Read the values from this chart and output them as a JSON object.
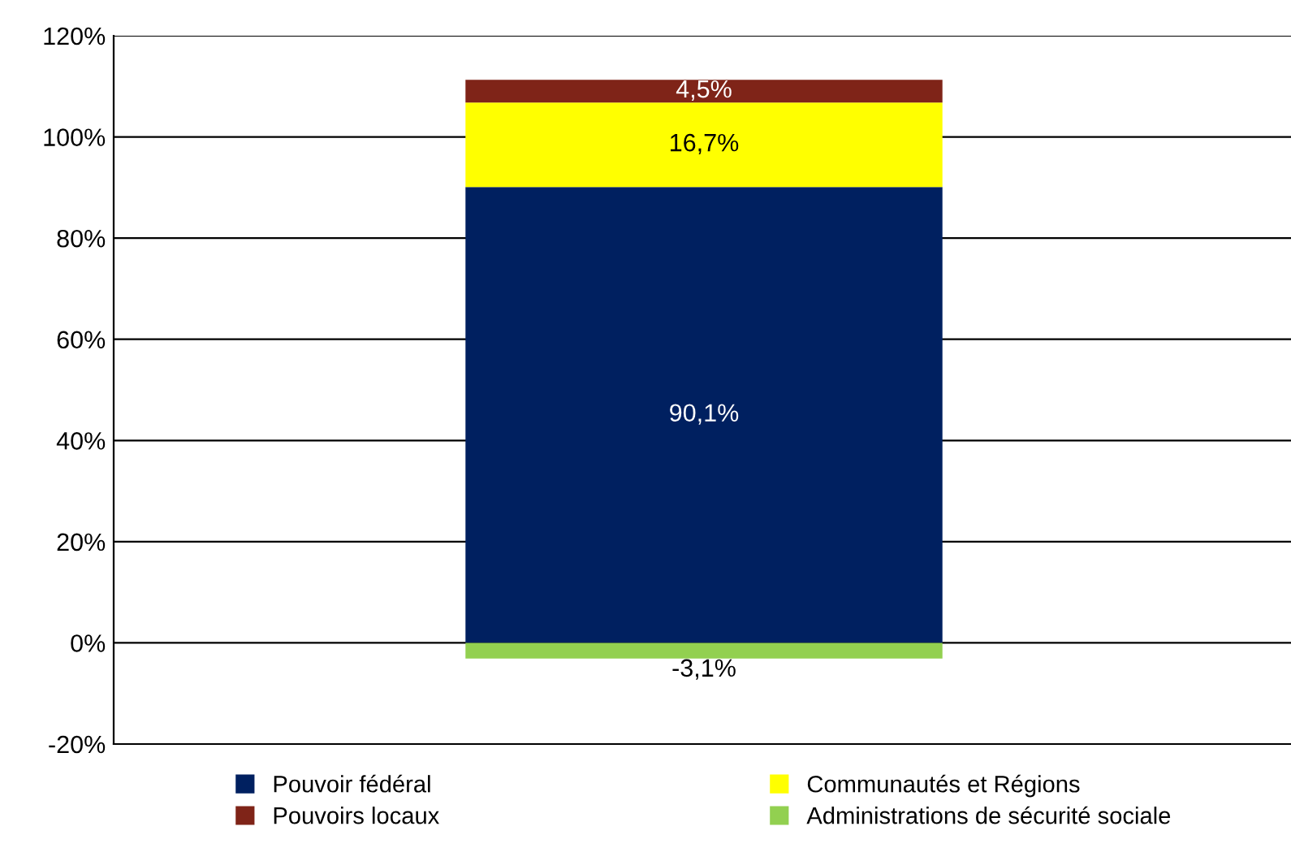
{
  "chart_data": {
    "type": "bar",
    "stacked": true,
    "categories": [
      null
    ],
    "series": [
      {
        "name": "Pouvoir fédéral",
        "color": "#002060",
        "values": [
          90.1
        ],
        "value_labels": [
          "90,1%"
        ]
      },
      {
        "name": "Communautés et Régions",
        "color": "#ffff00",
        "values": [
          16.7
        ],
        "value_labels": [
          "16,7%"
        ]
      },
      {
        "name": "Pouvoirs locaux",
        "color": "#7f2418",
        "values": [
          4.5
        ],
        "value_labels": [
          "4,5%"
        ]
      },
      {
        "name": "Administrations de sécurité sociale",
        "color": "#92d050",
        "values": [
          -3.1
        ],
        "value_labels": [
          "-3,1%"
        ]
      }
    ],
    "ylim": [
      -20,
      120
    ],
    "yticks": [
      {
        "value": -20,
        "label": "-20%"
      },
      {
        "value": 0,
        "label": "0%"
      },
      {
        "value": 20,
        "label": "20%"
      },
      {
        "value": 40,
        "label": "40%"
      },
      {
        "value": 60,
        "label": "60%"
      },
      {
        "value": 80,
        "label": "80%"
      },
      {
        "value": 100,
        "label": "100%"
      },
      {
        "value": 120,
        "label": "120%"
      }
    ],
    "grid": "y",
    "legend": "bottom"
  }
}
